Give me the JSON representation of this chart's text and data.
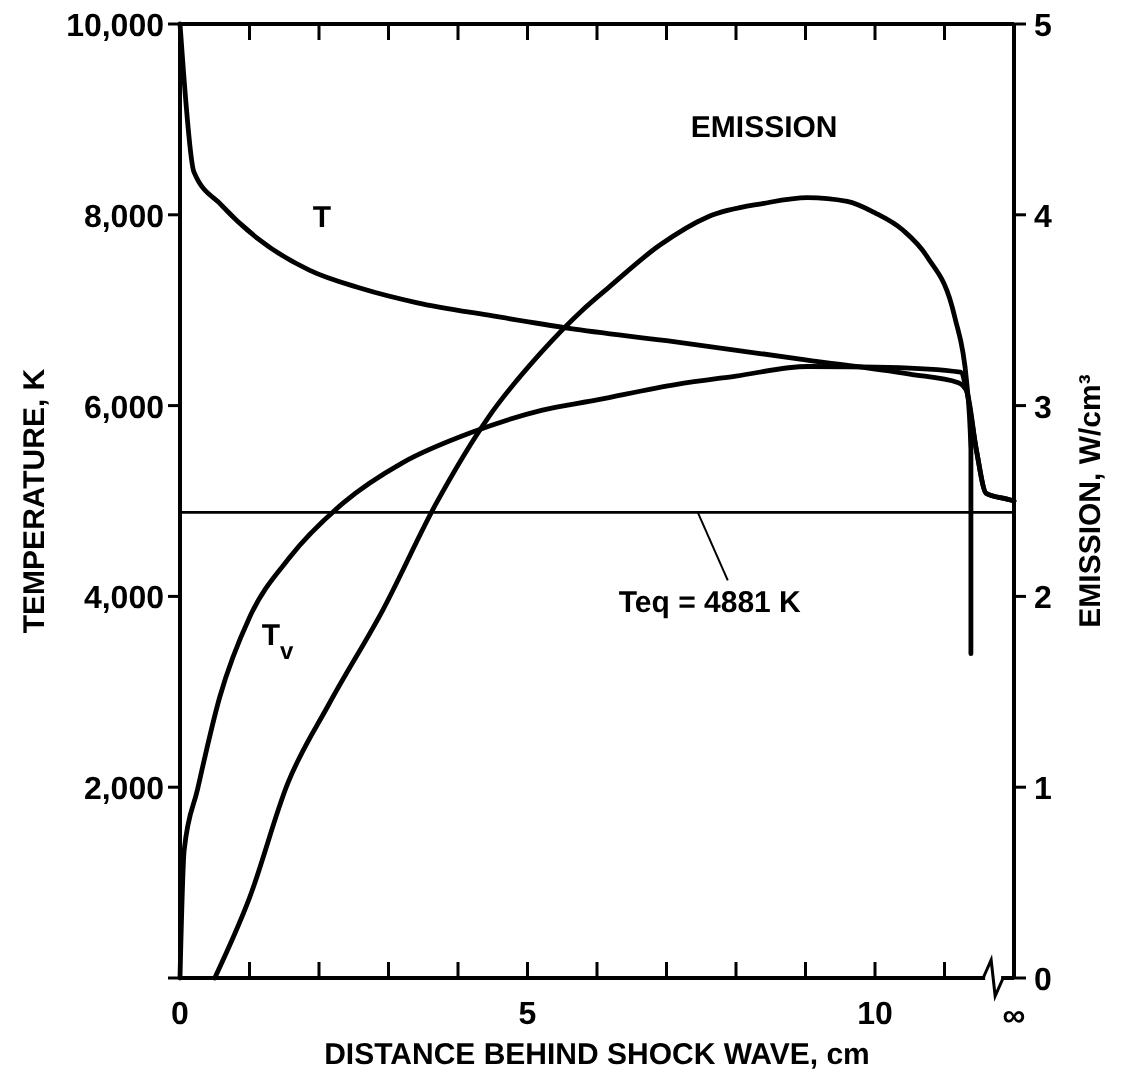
{
  "chart_data": {
    "type": "line",
    "xlabel": "DISTANCE BEHIND SHOCK WAVE, cm",
    "ylabel": "TEMPERATURE, K",
    "y2label": "EMISSION, W/cm³",
    "xlim": [
      0,
      12
    ],
    "xticks": [
      0,
      {
        "value": 1,
        "label": null
      },
      {
        "value": 2,
        "label": null
      },
      {
        "value": 3,
        "label": null
      },
      {
        "value": 4,
        "label": null
      },
      5,
      {
        "value": 6,
        "label": null
      },
      {
        "value": 7,
        "label": null
      },
      {
        "value": 8,
        "label": null
      },
      {
        "value": 9,
        "label": null
      },
      10,
      {
        "value": 11,
        "label": null
      },
      {
        "value": 12,
        "label": "∞"
      }
    ],
    "ylim": [
      0,
      10000
    ],
    "yticks": [
      {
        "value": 0,
        "label": null
      },
      {
        "value": 2000,
        "label": "2,000"
      },
      {
        "value": 4000,
        "label": "4,000"
      },
      {
        "value": 6000,
        "label": "6,000"
      },
      {
        "value": 8000,
        "label": "8,000"
      },
      {
        "value": 10000,
        "label": "10,000"
      }
    ],
    "y2lim": [
      0,
      5
    ],
    "y2ticks": [
      0,
      1,
      2,
      3,
      4,
      5
    ],
    "grid": false,
    "marker": "none",
    "line_style": "solid",
    "series": [
      {
        "name": "T",
        "color": "#000000",
        "x": [
          0,
          0.05,
          0.2,
          0.6,
          1.12,
          1.86,
          2.6,
          3.4,
          4.5,
          5.6,
          7.0,
          9.0,
          10.5,
          11.2,
          11.32,
          11.46,
          11.6,
          11.9,
          12
        ],
        "values": [
          10000,
          9500,
          8450,
          8100,
          7750,
          7420,
          7230,
          7080,
          6940,
          6810,
          6680,
          6480,
          6330,
          6240,
          6150,
          5530,
          5080,
          5020,
          5000
        ]
      },
      {
        "name": "T$_{v}$",
        "color": "#000000",
        "x": [
          0,
          0.06,
          0.25,
          0.57,
          1.0,
          1.58,
          2.35,
          3.2,
          4.2,
          5.2,
          6.0,
          7.13,
          8.0,
          9.03,
          10.2,
          11.23,
          11.32,
          11.46,
          11.6,
          11.9,
          12
        ],
        "values": [
          0,
          1340,
          1970,
          2940,
          3780,
          4410,
          4980,
          5400,
          5720,
          5950,
          6060,
          6220,
          6310,
          6410,
          6400,
          6350,
          6150,
          5530,
          5080,
          5020,
          5000
        ]
      },
      {
        "name": "EMISSION",
        "axis": "y2",
        "color": "#000000",
        "x": [
          0.5,
          1.0,
          1.55,
          2.15,
          2.92,
          3.69,
          4.44,
          5.2,
          5.79,
          6.17,
          6.9,
          7.6,
          8.4,
          9.03,
          9.6,
          10.0,
          10.4,
          10.75,
          11.15,
          11.32,
          11.38,
          11.38
        ],
        "values": [
          0,
          0.42,
          1.02,
          1.44,
          1.93,
          2.49,
          2.94,
          3.28,
          3.5,
          3.62,
          3.84,
          3.99,
          4.06,
          4.09,
          4.07,
          4.01,
          3.92,
          3.78,
          3.46,
          3.12,
          2.77,
          1.7
        ]
      }
    ],
    "ref_lines": [
      {
        "axis": "y",
        "value": 4881,
        "color": "#000000",
        "line_style": "solid"
      }
    ],
    "annotations": [
      {
        "text": "Teq = 4881 K",
        "x": 7.45,
        "y": 4881
      }
    ]
  }
}
